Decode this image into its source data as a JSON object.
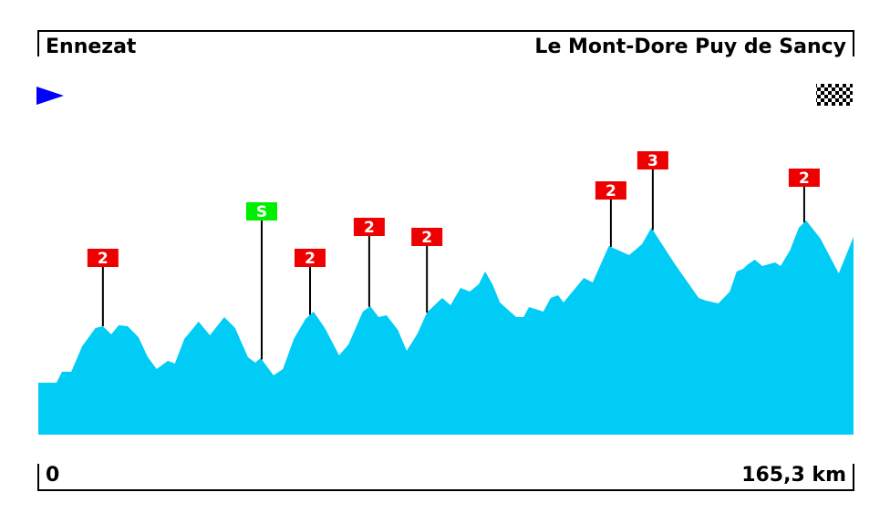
{
  "chart_data": {
    "type": "area",
    "start": "Ennezat",
    "finish": "Le Mont-Dore Puy de Sancy",
    "color": "#00ccf5",
    "xlim": [
      0,
      165.3
    ],
    "xticks": [
      0,
      {
        "value": 165.3,
        "label": "165,3 km"
      }
    ],
    "ylim": [
      0,
      300
    ],
    "x": [
      0,
      3.7,
      4.8,
      6.7,
      8.9,
      11.6,
      13.1,
      14.8,
      16.3,
      18.1,
      20.3,
      22.2,
      24.0,
      26.3,
      27.7,
      29.6,
      32.5,
      34.8,
      37.7,
      39.9,
      42.5,
      44.0,
      45.1,
      47.7,
      49.6,
      51.8,
      54.2,
      55.8,
      58.1,
      61.0,
      62.9,
      65.8,
      67.3,
      69.0,
      70.6,
      72.9,
      74.7,
      76.9,
      78.8,
      81.9,
      83.6,
      85.6,
      87.5,
      89.3,
      90.6,
      92.1,
      93.6,
      96.9,
      98.4,
      99.5,
      101.3,
      102.4,
      103.9,
      105.4,
      106.5,
      110.6,
      112.4,
      115.7,
      119.8,
      122.4,
      124.3,
      129.1,
      133.9,
      135.4,
      137.9,
      140.2,
      141.6,
      142.9,
      143.9,
      145.3,
      146.8,
      149.4,
      150.5,
      152.4,
      154.2,
      155.7,
      158.6,
      162.3,
      165.3
    ],
    "values": [
      57,
      57,
      69,
      69,
      97,
      117,
      119,
      110,
      120,
      119,
      107,
      85,
      72,
      81,
      78,
      105,
      124,
      109,
      129,
      117,
      85,
      79,
      84,
      65,
      72,
      105,
      127,
      135,
      117,
      87,
      99,
      135,
      141,
      129,
      131,
      115,
      92,
      111,
      134,
      150,
      142,
      161,
      157,
      165,
      179,
      165,
      145,
      129,
      129,
      140,
      137,
      135,
      150,
      153,
      145,
      172,
      167,
      207,
      197,
      209,
      227,
      187,
      150,
      147,
      144,
      157,
      179,
      182,
      187,
      192,
      185,
      189,
      185,
      202,
      227,
      235,
      215,
      177,
      217
    ],
    "climbs": [
      {
        "x": 13.1,
        "label": "2",
        "color": "#ee0000"
      },
      {
        "x": 45.3,
        "label": "S",
        "color": "#00ee00"
      },
      {
        "x": 55.1,
        "label": "2",
        "color": "#ee0000"
      },
      {
        "x": 67.1,
        "label": "2",
        "color": "#ee0000"
      },
      {
        "x": 78.8,
        "label": "2",
        "color": "#ee0000"
      },
      {
        "x": 116.1,
        "label": "2",
        "color": "#ee0000"
      },
      {
        "x": 124.6,
        "label": "3",
        "color": "#ee0000"
      },
      {
        "x": 155.3,
        "label": "2",
        "color": "#ee0000"
      }
    ]
  }
}
